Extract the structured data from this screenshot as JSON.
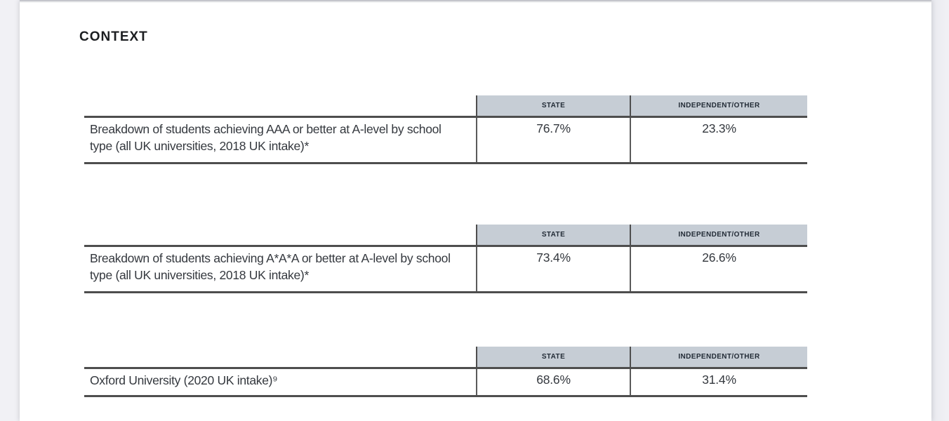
{
  "page": {
    "heading": "CONTEXT"
  },
  "tables": [
    {
      "columns": {
        "state": "STATE",
        "independent": "INDEPENDENT/OTHER"
      },
      "label": "Breakdown of students achieving AAA or better at A-level by school type (all UK universities, 2018 UK intake)*",
      "state_value": "76.7%",
      "independent_value": "23.3%"
    },
    {
      "columns": {
        "state": "STATE",
        "independent": "INDEPENDENT/OTHER"
      },
      "label": "Breakdown of students achieving A*A*A or better at A-level by school type (all UK universities, 2018 UK intake)*",
      "state_value": "73.4%",
      "independent_value": "26.6%"
    },
    {
      "columns": {
        "state": "STATE",
        "independent": "INDEPENDENT/OTHER"
      },
      "label": "Oxford University (2020 UK intake)⁹",
      "state_value": "68.6%",
      "independent_value": "31.4%"
    }
  ],
  "colors": {
    "header_cell_bg": "#c6cdd5",
    "table_rule": "#4e4e4e",
    "body_text": "#34383e",
    "viewer_margin_bg": "#f1f1f5",
    "page_bg": "#ffffff"
  }
}
